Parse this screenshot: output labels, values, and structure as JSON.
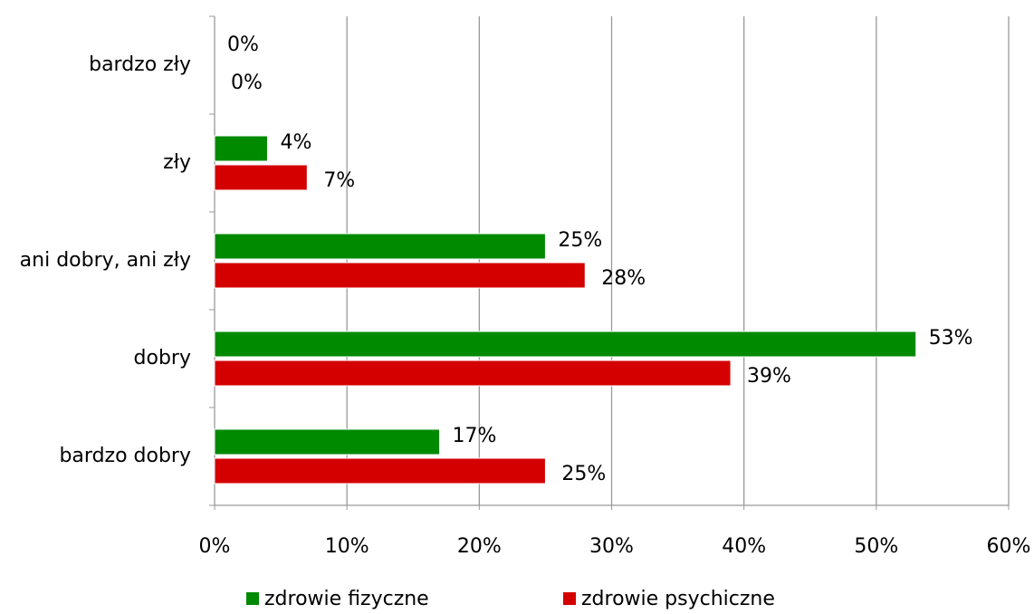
{
  "chart_data": {
    "type": "hbar",
    "categories": [
      "bardzo zły",
      "zły",
      "ani dobry, ani zły",
      "dobry",
      "bardzo dobry"
    ],
    "series": [
      {
        "name": "zdrowie fizyczne",
        "color": "#008a00",
        "values": [
          0,
          4,
          25,
          53,
          17
        ],
        "value_labels": [
          "0%",
          "4%",
          "25%",
          "53%",
          "17%"
        ]
      },
      {
        "name": "zdrowie psychiczne",
        "color": "#d40000",
        "values": [
          0,
          7,
          28,
          39,
          25
        ],
        "value_labels": [
          "0%",
          "7%",
          "28%",
          "39%",
          "25%"
        ]
      }
    ],
    "xlim": [
      0,
      60
    ],
    "xticks": [
      {
        "value": 0,
        "label": "0%"
      },
      {
        "value": 10,
        "label": "10%"
      },
      {
        "value": 20,
        "label": "20%"
      },
      {
        "value": 30,
        "label": "30%"
      },
      {
        "value": 40,
        "label": "40%"
      },
      {
        "value": 50,
        "label": "50%"
      },
      {
        "value": 60,
        "label": "60%"
      }
    ],
    "grid": true,
    "legend": "bottom"
  }
}
